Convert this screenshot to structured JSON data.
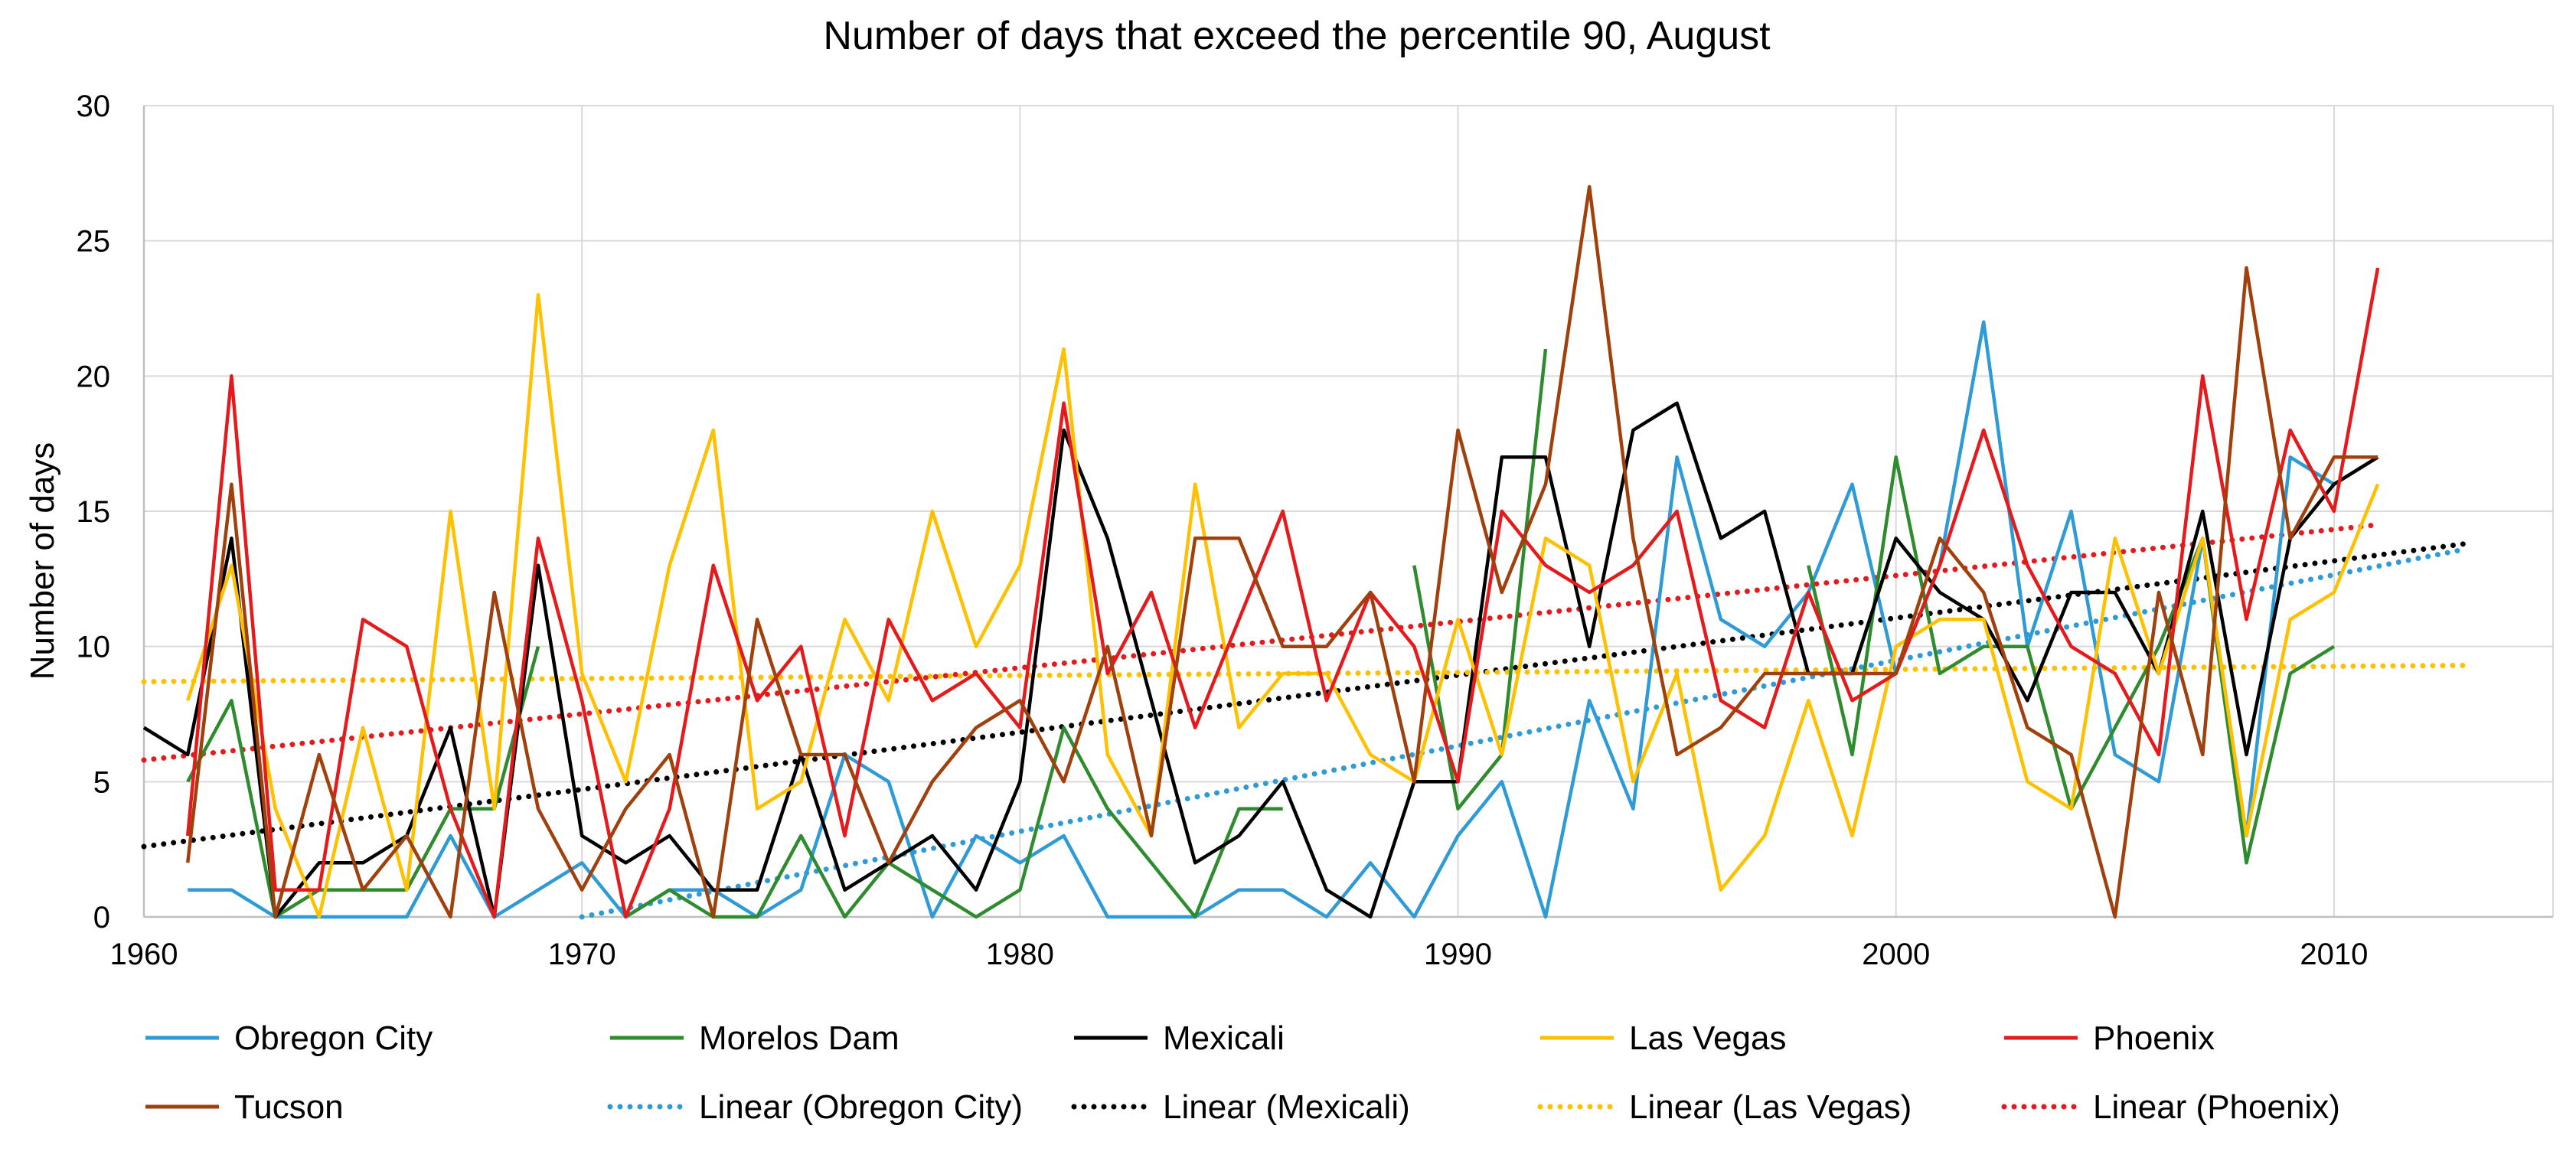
{
  "chart_data": {
    "type": "line",
    "title": "Number of days that exceed the percentile 90, August",
    "xlabel": "",
    "ylabel": "Number of days",
    "xlim": [
      1960,
      2015
    ],
    "ylim": [
      0,
      30
    ],
    "xticks": [
      1960,
      1970,
      1980,
      1990,
      2000,
      2010
    ],
    "yticks": [
      0,
      5,
      10,
      15,
      20,
      25,
      30
    ],
    "grid": true,
    "legend_position": "bottom",
    "series": [
      {
        "name": "Obregon City",
        "color": "#2e9bd6",
        "style": "solid",
        "points": [
          [
            1961,
            1
          ],
          [
            1962,
            1
          ],
          [
            1963,
            0
          ],
          [
            1964,
            0
          ],
          [
            1965,
            0
          ],
          [
            1966,
            0
          ],
          [
            1967,
            3
          ],
          [
            1968,
            0
          ],
          [
            1969,
            1
          ],
          [
            1970,
            2
          ],
          [
            1971,
            0
          ],
          [
            1972,
            1
          ],
          [
            1973,
            1
          ],
          [
            1974,
            0
          ],
          [
            1975,
            1
          ],
          [
            1976,
            6
          ],
          [
            1977,
            5
          ],
          [
            1978,
            0
          ],
          [
            1979,
            3
          ],
          [
            1980,
            2
          ],
          [
            1981,
            3
          ],
          [
            1982,
            0
          ],
          [
            1983,
            0
          ],
          [
            1984,
            0
          ],
          [
            1985,
            1
          ],
          [
            1986,
            1
          ],
          [
            1987,
            0
          ],
          [
            1988,
            2
          ],
          [
            1989,
            0
          ],
          [
            1990,
            3
          ],
          [
            1991,
            5
          ],
          [
            1992,
            0
          ],
          [
            1993,
            8
          ],
          [
            1994,
            4
          ],
          [
            1995,
            17
          ],
          [
            1996,
            11
          ],
          [
            1997,
            10
          ],
          [
            1998,
            12
          ],
          [
            1999,
            16
          ],
          [
            2000,
            9
          ],
          [
            2001,
            13
          ],
          [
            2002,
            22
          ],
          [
            2003,
            10
          ],
          [
            2004,
            15
          ],
          [
            2005,
            6
          ],
          [
            2006,
            5
          ],
          [
            2007,
            14
          ],
          [
            2008,
            3
          ],
          [
            2009,
            17
          ],
          [
            2010,
            16
          ],
          [
            2011,
            17
          ]
        ]
      },
      {
        "name": "Morelos Dam",
        "color": "#2e8b2e",
        "style": "solid",
        "points": [
          [
            1961,
            5
          ],
          [
            1962,
            8
          ],
          [
            1963,
            0
          ],
          [
            1964,
            1
          ],
          [
            1965,
            1
          ],
          [
            1966,
            1
          ],
          [
            1967,
            4
          ],
          [
            1968,
            4
          ],
          [
            1969,
            10
          ],
          null,
          [
            1971,
            0
          ],
          [
            1972,
            1
          ],
          [
            1973,
            0
          ],
          [
            1974,
            0
          ],
          [
            1975,
            3
          ],
          [
            1976,
            0
          ],
          [
            1977,
            2
          ],
          [
            1978,
            1
          ],
          [
            1979,
            0
          ],
          [
            1980,
            1
          ],
          [
            1981,
            7
          ],
          [
            1982,
            4
          ],
          [
            1983,
            2
          ],
          [
            1984,
            0
          ],
          [
            1985,
            4
          ],
          [
            1986,
            4
          ],
          null,
          null,
          [
            1989,
            13
          ],
          [
            1990,
            4
          ],
          [
            1991,
            6
          ],
          [
            1992,
            21
          ],
          null,
          null,
          null,
          null,
          null,
          [
            1998,
            13
          ],
          [
            1999,
            6
          ],
          [
            2000,
            17
          ],
          [
            2001,
            9
          ],
          [
            2002,
            10
          ],
          [
            2003,
            10
          ],
          [
            2004,
            4
          ],
          [
            2005,
            7
          ],
          [
            2006,
            10
          ],
          [
            2007,
            14
          ],
          [
            2008,
            2
          ],
          [
            2009,
            9
          ],
          [
            2010,
            10
          ]
        ]
      },
      {
        "name": "Mexicali",
        "color": "#000000",
        "style": "solid",
        "points": [
          [
            1960,
            7
          ],
          [
            1961,
            6
          ],
          [
            1962,
            14
          ],
          [
            1963,
            0
          ],
          [
            1964,
            2
          ],
          [
            1965,
            2
          ],
          [
            1966,
            3
          ],
          [
            1967,
            7
          ],
          [
            1968,
            0
          ],
          [
            1969,
            13
          ],
          [
            1970,
            3
          ],
          [
            1971,
            2
          ],
          [
            1972,
            3
          ],
          [
            1973,
            1
          ],
          [
            1974,
            1
          ],
          [
            1975,
            6
          ],
          [
            1976,
            1
          ],
          [
            1977,
            2
          ],
          [
            1978,
            3
          ],
          [
            1979,
            1
          ],
          [
            1980,
            5
          ],
          [
            1981,
            18
          ],
          [
            1982,
            14
          ],
          [
            1983,
            8
          ],
          [
            1984,
            2
          ],
          [
            1985,
            3
          ],
          [
            1986,
            5
          ],
          [
            1987,
            1
          ],
          [
            1988,
            0
          ],
          [
            1989,
            5
          ],
          [
            1990,
            5
          ],
          [
            1991,
            17
          ],
          [
            1992,
            17
          ],
          [
            1993,
            10
          ],
          [
            1994,
            18
          ],
          [
            1995,
            19
          ],
          [
            1996,
            14
          ],
          [
            1997,
            15
          ],
          [
            1998,
            9
          ],
          [
            1999,
            9
          ],
          [
            2000,
            14
          ],
          [
            2001,
            12
          ],
          [
            2002,
            11
          ],
          [
            2003,
            8
          ],
          [
            2004,
            12
          ],
          [
            2005,
            12
          ],
          [
            2006,
            9
          ],
          [
            2007,
            15
          ],
          [
            2008,
            6
          ],
          [
            2009,
            14
          ],
          [
            2010,
            16
          ],
          [
            2011,
            17
          ]
        ]
      },
      {
        "name": "Las Vegas",
        "color": "#ffc000",
        "style": "solid",
        "points": [
          [
            1961,
            8
          ],
          [
            1962,
            13
          ],
          [
            1963,
            4
          ],
          [
            1964,
            0
          ],
          [
            1965,
            7
          ],
          [
            1966,
            1
          ],
          [
            1967,
            15
          ],
          [
            1968,
            4
          ],
          [
            1969,
            23
          ],
          [
            1970,
            9
          ],
          [
            1971,
            5
          ],
          [
            1972,
            13
          ],
          [
            1973,
            18
          ],
          [
            1974,
            4
          ],
          [
            1975,
            5
          ],
          [
            1976,
            11
          ],
          [
            1977,
            8
          ],
          [
            1978,
            15
          ],
          [
            1979,
            10
          ],
          [
            1980,
            13
          ],
          [
            1981,
            21
          ],
          [
            1982,
            6
          ],
          [
            1983,
            3
          ],
          [
            1984,
            16
          ],
          [
            1985,
            7
          ],
          [
            1986,
            9
          ],
          [
            1987,
            9
          ],
          [
            1988,
            6
          ],
          [
            1989,
            5
          ],
          [
            1990,
            11
          ],
          [
            1991,
            6
          ],
          [
            1992,
            14
          ],
          [
            1993,
            13
          ],
          [
            1994,
            5
          ],
          [
            1995,
            9
          ],
          [
            1996,
            1
          ],
          [
            1997,
            3
          ],
          [
            1998,
            8
          ],
          [
            1999,
            3
          ],
          [
            2000,
            10
          ],
          [
            2001,
            11
          ],
          [
            2002,
            11
          ],
          [
            2003,
            5
          ],
          [
            2004,
            4
          ],
          [
            2005,
            14
          ],
          [
            2006,
            9
          ],
          [
            2007,
            14
          ],
          [
            2008,
            3
          ],
          [
            2009,
            11
          ],
          [
            2010,
            12
          ],
          [
            2011,
            16
          ]
        ]
      },
      {
        "name": "Phoenix",
        "color": "#e41a1c",
        "style": "solid",
        "points": [
          [
            1961,
            3
          ],
          [
            1962,
            20
          ],
          [
            1963,
            1
          ],
          [
            1964,
            1
          ],
          [
            1965,
            11
          ],
          [
            1966,
            10
          ],
          [
            1967,
            4
          ],
          [
            1968,
            0
          ],
          [
            1969,
            14
          ],
          [
            1970,
            8
          ],
          [
            1971,
            0
          ],
          [
            1972,
            4
          ],
          [
            1973,
            13
          ],
          [
            1974,
            8
          ],
          [
            1975,
            10
          ],
          [
            1976,
            3
          ],
          [
            1977,
            11
          ],
          [
            1978,
            8
          ],
          [
            1979,
            9
          ],
          [
            1980,
            7
          ],
          [
            1981,
            19
          ],
          [
            1982,
            9
          ],
          [
            1983,
            12
          ],
          [
            1984,
            7
          ],
          [
            1985,
            11
          ],
          [
            1986,
            15
          ],
          [
            1987,
            8
          ],
          [
            1988,
            12
          ],
          [
            1989,
            10
          ],
          [
            1990,
            5
          ],
          [
            1991,
            15
          ],
          [
            1992,
            13
          ],
          [
            1993,
            12
          ],
          [
            1994,
            13
          ],
          [
            1995,
            15
          ],
          [
            1996,
            8
          ],
          [
            1997,
            7
          ],
          [
            1998,
            12
          ],
          [
            1999,
            8
          ],
          [
            2000,
            9
          ],
          [
            2001,
            13
          ],
          [
            2002,
            18
          ],
          [
            2003,
            13
          ],
          [
            2004,
            10
          ],
          [
            2005,
            9
          ],
          [
            2006,
            6
          ],
          [
            2007,
            20
          ],
          [
            2008,
            11
          ],
          [
            2009,
            18
          ],
          [
            2010,
            15
          ],
          [
            2011,
            24
          ]
        ]
      },
      {
        "name": "Tucson",
        "color": "#a0410d",
        "style": "solid",
        "points": [
          [
            1961,
            2
          ],
          [
            1962,
            16
          ],
          [
            1963,
            0
          ],
          [
            1964,
            6
          ],
          [
            1965,
            1
          ],
          [
            1966,
            3
          ],
          [
            1967,
            0
          ],
          [
            1968,
            12
          ],
          [
            1969,
            4
          ],
          [
            1970,
            1
          ],
          [
            1971,
            4
          ],
          [
            1972,
            6
          ],
          [
            1973,
            0
          ],
          [
            1974,
            11
          ],
          [
            1975,
            6
          ],
          [
            1976,
            6
          ],
          [
            1977,
            2
          ],
          [
            1978,
            5
          ],
          [
            1979,
            7
          ],
          [
            1980,
            8
          ],
          [
            1981,
            5
          ],
          [
            1982,
            10
          ],
          [
            1983,
            3
          ],
          [
            1984,
            14
          ],
          [
            1985,
            14
          ],
          [
            1986,
            10
          ],
          [
            1987,
            10
          ],
          [
            1988,
            12
          ],
          [
            1989,
            5
          ],
          [
            1990,
            18
          ],
          [
            1991,
            12
          ],
          [
            1992,
            16
          ],
          [
            1993,
            27
          ],
          [
            1994,
            14
          ],
          [
            1995,
            6
          ],
          [
            1996,
            7
          ],
          [
            1997,
            9
          ],
          [
            1998,
            9
          ],
          [
            1999,
            9
          ],
          [
            2000,
            9
          ],
          [
            2001,
            14
          ],
          [
            2002,
            12
          ],
          [
            2003,
            7
          ],
          [
            2004,
            6
          ],
          [
            2005,
            0
          ],
          [
            2006,
            12
          ],
          [
            2007,
            6
          ],
          [
            2008,
            24
          ],
          [
            2009,
            14
          ],
          [
            2010,
            17
          ],
          [
            2011,
            17
          ]
        ]
      },
      {
        "name": "Linear (Obregon City)",
        "color": "#2e9bd6",
        "style": "dotted",
        "points": [
          [
            1970,
            0
          ],
          [
            2013,
            13.6
          ]
        ]
      },
      {
        "name": "Linear (Mexicali)",
        "color": "#000000",
        "style": "dotted",
        "points": [
          [
            1960,
            2.6
          ],
          [
            2013,
            13.8
          ]
        ]
      },
      {
        "name": "Linear (Las Vegas)",
        "color": "#ffc000",
        "style": "dotted",
        "points": [
          [
            1960,
            8.7
          ],
          [
            2013,
            9.3
          ]
        ]
      },
      {
        "name": "Linear (Phoenix)",
        "color": "#e41a1c",
        "style": "dotted",
        "points": [
          [
            1960,
            5.8
          ],
          [
            2011,
            14.5
          ]
        ]
      }
    ]
  }
}
